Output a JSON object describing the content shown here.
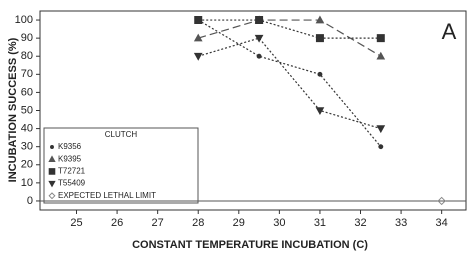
{
  "chart_data": {
    "type": "line",
    "panel_label": "A",
    "xlabel": "CONSTANT TEMPERATURE INCUBATION (C)",
    "ylabel": "INCUBATION SUCCESS (%)",
    "legend_title": "CLUTCH",
    "legend": "lower left",
    "xlim": [
      24.1,
      34.6
    ],
    "xticks": [
      25,
      26,
      27,
      28,
      29,
      30,
      31,
      32,
      33,
      34
    ],
    "ylim": [
      -5,
      105
    ],
    "yticks": [
      0,
      10,
      20,
      30,
      40,
      50,
      60,
      70,
      80,
      90,
      100
    ],
    "series": [
      {
        "name": "K9356",
        "marker": "circle",
        "dash": "dotted",
        "color": "#333333",
        "x": [
          28,
          29.5,
          31,
          32.5
        ],
        "values": [
          100,
          80,
          70,
          30
        ]
      },
      {
        "name": "K9395",
        "marker": "triangle",
        "dash": "dashed",
        "color": "#555555",
        "x": [
          28,
          29.5,
          31,
          32.5
        ],
        "values": [
          90,
          100,
          100,
          80
        ]
      },
      {
        "name": "T72721",
        "marker": "square",
        "dash": "dotted",
        "color": "#333333",
        "x": [
          28,
          29.5,
          31,
          32.5
        ],
        "values": [
          100,
          100,
          90,
          90
        ]
      },
      {
        "name": "T55409",
        "marker": "triangle-down",
        "dash": "dotted",
        "color": "#333333",
        "x": [
          28,
          29.5,
          31,
          32.5
        ],
        "values": [
          80,
          90,
          50,
          40
        ]
      },
      {
        "name": "EXPECTED LETHAL LIMIT",
        "marker": "diamond",
        "dash": "none",
        "color": "#888888",
        "x": [
          34
        ],
        "values": [
          0
        ]
      }
    ]
  }
}
